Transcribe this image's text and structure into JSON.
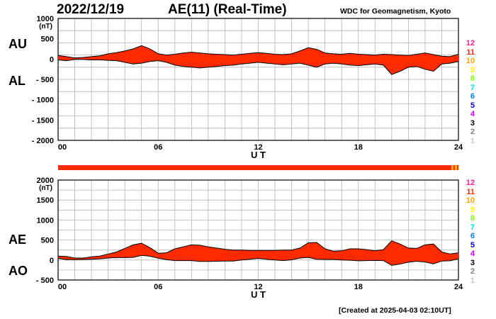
{
  "header": {
    "date": "2022/12/19",
    "title": "AE(11) (Real-Time)",
    "source": "WDC for Geomagnetism, Kyoto"
  },
  "footer": {
    "created": "[Created at 2025-04-03 02:10UT]"
  },
  "colors": {
    "fill": "#ff2a00",
    "outline": "#000000",
    "grid": "#b4b4b4",
    "strip_main": "#ff2a00",
    "strip_end": "#ffb000"
  },
  "legend": {
    "items": [
      {
        "label": "12",
        "color": "#ff1f8f"
      },
      {
        "label": "11",
        "color": "#ff2a00"
      },
      {
        "label": "10",
        "color": "#ffa500"
      },
      {
        "label": "9",
        "color": "#ffff00"
      },
      {
        "label": "8",
        "color": "#80ff00"
      },
      {
        "label": "7",
        "color": "#00e0e0"
      },
      {
        "label": "6",
        "color": "#0080ff"
      },
      {
        "label": "5",
        "color": "#0000d0"
      },
      {
        "label": "4",
        "color": "#d000ff"
      },
      {
        "label": "3",
        "color": "#000000"
      },
      {
        "label": "2",
        "color": "#808080"
      },
      {
        "label": "1",
        "color": "#c8c8c8"
      }
    ]
  },
  "chart_data": [
    {
      "type": "area",
      "panel": "AU/AL",
      "title": "",
      "upper_label": "AU",
      "lower_label": "AL",
      "unit": "(nT)",
      "xlabel": "U T",
      "xlim": [
        0,
        24
      ],
      "ylim": [
        -2000,
        1000
      ],
      "yticks": [
        1000,
        500,
        0,
        -500,
        -1000,
        -1500,
        -2000
      ],
      "ytick_labels": [
        "1000",
        "500",
        "0",
        "- 500",
        "- 1000",
        "- 1500",
        "- 2000"
      ],
      "xticks": [
        0,
        6,
        12,
        18,
        24
      ],
      "xtick_labels": [
        "00",
        "06",
        "12",
        "18",
        "24"
      ],
      "grid": true,
      "series": [
        {
          "name": "AU",
          "x": [
            0,
            0.5,
            1,
            1.5,
            2,
            2.5,
            3,
            3.5,
            4,
            4.5,
            5,
            5.5,
            6,
            6.5,
            7,
            7.5,
            8,
            8.5,
            9,
            9.5,
            10,
            10.5,
            11,
            11.5,
            12,
            12.5,
            13,
            13.5,
            14,
            14.5,
            15,
            15.5,
            16,
            16.5,
            17,
            17.5,
            18,
            18.5,
            19,
            19.5,
            20,
            20.5,
            21,
            21.5,
            22,
            22.5,
            23,
            23.5,
            24
          ],
          "values": [
            90,
            60,
            30,
            40,
            60,
            80,
            130,
            160,
            200,
            250,
            330,
            250,
            130,
            100,
            120,
            150,
            170,
            150,
            130,
            120,
            110,
            100,
            120,
            140,
            160,
            140,
            120,
            110,
            130,
            200,
            280,
            240,
            150,
            130,
            120,
            140,
            120,
            110,
            100,
            120,
            110,
            100,
            90,
            120,
            150,
            110,
            70,
            60,
            120
          ]
        },
        {
          "name": "AL",
          "x": [
            0,
            0.5,
            1,
            1.5,
            2,
            2.5,
            3,
            3.5,
            4,
            4.5,
            5,
            5.5,
            6,
            6.5,
            7,
            7.5,
            8,
            8.5,
            9,
            9.5,
            10,
            10.5,
            11,
            11.5,
            12,
            12.5,
            13,
            13.5,
            14,
            14.5,
            15,
            15.5,
            16,
            16.5,
            17,
            17.5,
            18,
            18.5,
            19,
            19.5,
            20,
            20.5,
            21,
            21.5,
            22,
            22.5,
            23,
            23.5,
            24
          ],
          "values": [
            -20,
            -40,
            -10,
            -10,
            -20,
            -20,
            -30,
            -40,
            -80,
            -120,
            -100,
            -60,
            -40,
            -80,
            -150,
            -180,
            -200,
            -220,
            -200,
            -180,
            -160,
            -150,
            -120,
            -100,
            -80,
            -100,
            -120,
            -140,
            -120,
            -100,
            -150,
            -200,
            -120,
            -100,
            -120,
            -150,
            -160,
            -140,
            -120,
            -150,
            -380,
            -300,
            -200,
            -180,
            -250,
            -300,
            -120,
            -100,
            -60
          ]
        }
      ]
    },
    {
      "type": "area",
      "panel": "AE/AO",
      "title": "",
      "upper_label": "AE",
      "lower_label": "AO",
      "unit": "(nT)",
      "xlabel": "U T",
      "xlim": [
        0,
        24
      ],
      "ylim": [
        -500,
        2000
      ],
      "yticks": [
        2000,
        1500,
        1000,
        500,
        0,
        -500
      ],
      "ytick_labels": [
        "2000",
        "1500",
        "1000",
        "500",
        "0",
        "- 500"
      ],
      "xticks": [
        0,
        6,
        12,
        18,
        24
      ],
      "xtick_labels": [
        "00",
        "06",
        "12",
        "18",
        "24"
      ],
      "grid": true,
      "series": [
        {
          "name": "AE",
          "x": [
            0,
            0.5,
            1,
            1.5,
            2,
            2.5,
            3,
            3.5,
            4,
            4.5,
            5,
            5.5,
            6,
            6.5,
            7,
            7.5,
            8,
            8.5,
            9,
            9.5,
            10,
            10.5,
            11,
            11.5,
            12,
            12.5,
            13,
            13.5,
            14,
            14.5,
            15,
            15.5,
            16,
            16.5,
            17,
            17.5,
            18,
            18.5,
            19,
            19.5,
            20,
            20.5,
            21,
            21.5,
            22,
            22.5,
            23,
            23.5,
            24
          ],
          "values": [
            100,
            90,
            50,
            50,
            80,
            100,
            150,
            200,
            290,
            380,
            420,
            310,
            170,
            180,
            280,
            330,
            380,
            370,
            330,
            300,
            270,
            250,
            250,
            240,
            240,
            240,
            240,
            250,
            250,
            300,
            430,
            440,
            280,
            220,
            230,
            280,
            280,
            260,
            230,
            260,
            480,
            400,
            300,
            290,
            380,
            400,
            200,
            150,
            180
          ]
        },
        {
          "name": "AO",
          "x": [
            0,
            0.5,
            1,
            1.5,
            2,
            2.5,
            3,
            3.5,
            4,
            4.5,
            5,
            5.5,
            6,
            6.5,
            7,
            7.5,
            8,
            8.5,
            9,
            9.5,
            10,
            10.5,
            11,
            11.5,
            12,
            12.5,
            13,
            13.5,
            14,
            14.5,
            15,
            15.5,
            16,
            16.5,
            17,
            17.5,
            18,
            18.5,
            19,
            19.5,
            20,
            20.5,
            21,
            21.5,
            22,
            22.5,
            23,
            23.5,
            24
          ],
          "values": [
            40,
            10,
            10,
            15,
            20,
            30,
            50,
            60,
            60,
            65,
            115,
            95,
            45,
            10,
            -15,
            -15,
            -15,
            -35,
            -35,
            -30,
            -25,
            -25,
            0,
            20,
            40,
            20,
            0,
            -15,
            5,
            50,
            65,
            20,
            15,
            15,
            0,
            -5,
            -20,
            -15,
            -10,
            -15,
            -135,
            -100,
            -55,
            -30,
            -50,
            -95,
            -25,
            -20,
            30
          ]
        }
      ]
    }
  ]
}
